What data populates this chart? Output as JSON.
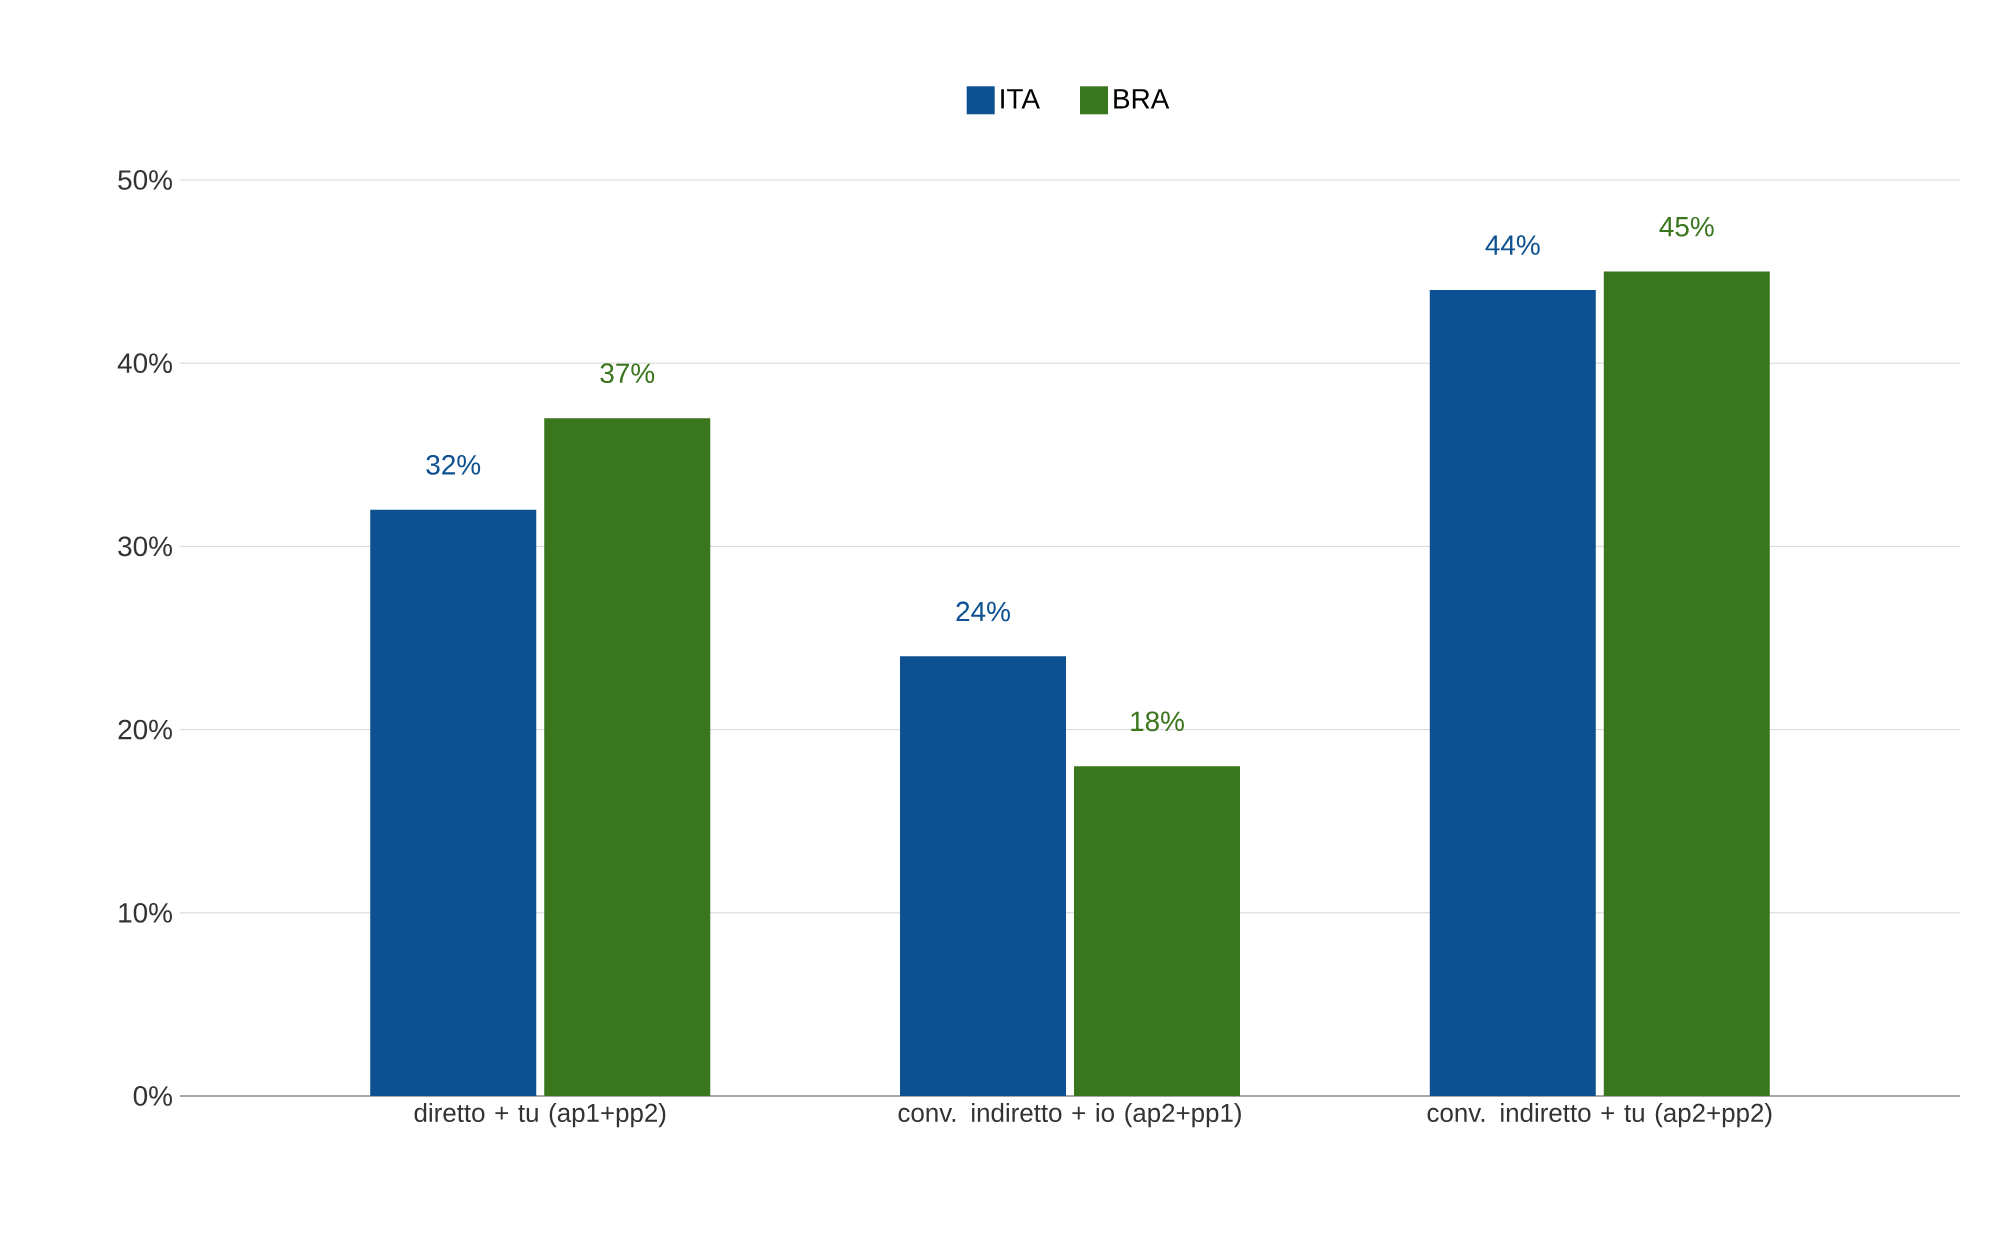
{
  "chart_data": {
    "type": "bar",
    "categories": [
      "diretto + tu (ap1+pp2)",
      "conv. indiretto + io (ap2+pp1)",
      "conv. indiretto + tu (ap2+pp2)"
    ],
    "series": [
      {
        "name": "ITA",
        "color": "#0d5192",
        "values": [
          32,
          24,
          44
        ],
        "value_labels": [
          "32%",
          "24%",
          "44%"
        ]
      },
      {
        "name": "BRA",
        "color": "#3a761e",
        "values": [
          37,
          18,
          45
        ],
        "value_labels": [
          "37%",
          "18%",
          "45%"
        ]
      }
    ],
    "ylim": [
      0,
      50
    ],
    "yticks": [
      {
        "value": 0,
        "label": "0%"
      },
      {
        "value": 10,
        "label": "10%"
      },
      {
        "value": 20,
        "label": "20%"
      },
      {
        "value": 30,
        "label": "30%"
      },
      {
        "value": 40,
        "label": "40%"
      },
      {
        "value": 50,
        "label": "50%"
      }
    ],
    "grid": "y",
    "legend": "top"
  }
}
